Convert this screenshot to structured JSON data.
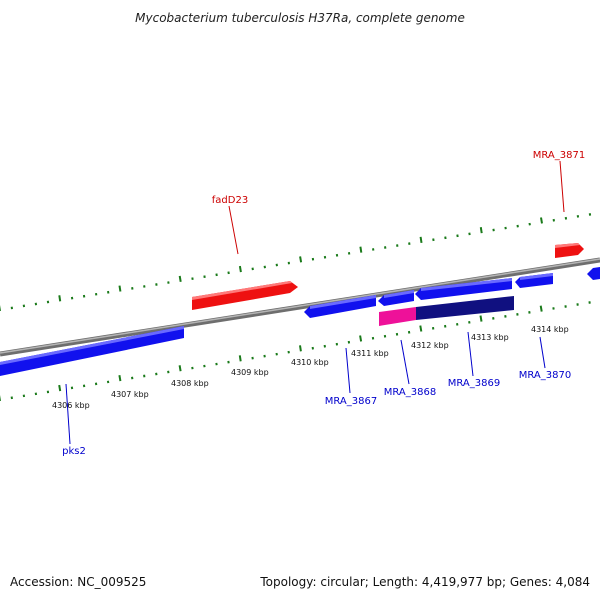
{
  "title": "Mycobacterium tuberculosis H37Ra, complete genome",
  "footer": {
    "accession": "Accession: NC_009525",
    "summary": "Topology: circular; Length: 4,419,977 bp; Genes: 4,084"
  },
  "colors": {
    "backbone": "#8c8c8c",
    "tick": "#1a7a1a",
    "forward_gene": "#ee1111",
    "reverse_gene": "#1111ee",
    "highlight_pink": "#ee1199",
    "highlight_navy": "#101080",
    "label_forward": "#cc0000",
    "label_reverse": "#0000cc"
  },
  "scale": {
    "labels": [
      "4306 kbp",
      "4307 kbp",
      "4308 kbp",
      "4309 kbp",
      "4310 kbp",
      "4311 kbp",
      "4312 kbp",
      "4313 kbp",
      "4314 kbp"
    ]
  },
  "genes": [
    {
      "id": "pks2",
      "label": "pks2",
      "strand": "reverse",
      "labeled": true
    },
    {
      "id": "fadD23",
      "label": "fadD23",
      "strand": "forward",
      "labeled": true
    },
    {
      "id": "MRA_3867",
      "label": "MRA_3867",
      "strand": "reverse",
      "labeled": true
    },
    {
      "id": "MRA_3868",
      "label": "MRA_3868",
      "strand": "reverse",
      "labeled": true
    },
    {
      "id": "MRA_3869",
      "label": "MRA_3869",
      "strand": "reverse",
      "labeled": true
    },
    {
      "id": "MRA_3870",
      "label": "MRA_3870",
      "strand": "reverse",
      "labeled": true
    },
    {
      "id": "MRA_3871",
      "label": "MRA_3871",
      "strand": "forward",
      "labeled": true
    },
    {
      "id": "right-edge-gene",
      "label": "",
      "strand": "reverse",
      "labeled": false
    }
  ]
}
